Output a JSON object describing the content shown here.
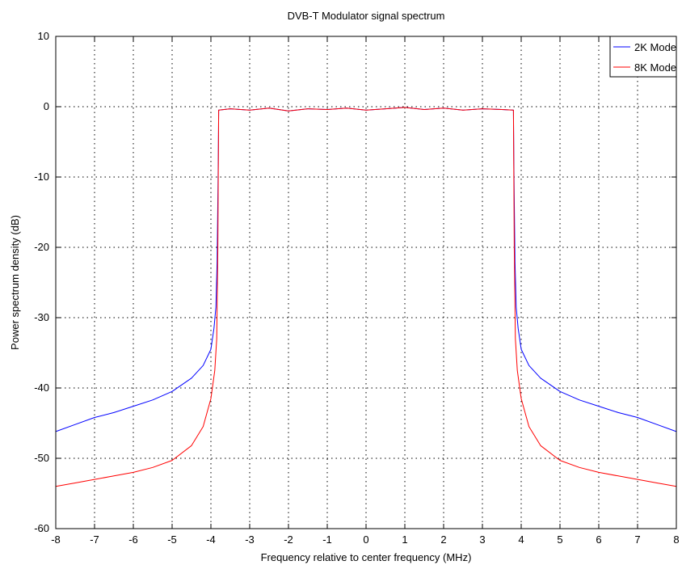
{
  "chart_data": {
    "type": "line",
    "title": "DVB-T Modulator signal spectrum",
    "xlabel": "Frequency relative to center frequency (MHz)",
    "ylabel": "Power spectrum density (dB)",
    "xlim": [
      -8,
      8
    ],
    "ylim": [
      -60,
      10
    ],
    "xticks": [
      -8,
      -7,
      -6,
      -5,
      -4,
      -3,
      -2,
      -1,
      0,
      1,
      2,
      3,
      4,
      5,
      6,
      7,
      8
    ],
    "yticks": [
      -60,
      -50,
      -40,
      -30,
      -20,
      -10,
      0,
      10
    ],
    "grid": true,
    "legend_position": "top-right",
    "series": [
      {
        "name": "2K Mode",
        "color": "#0000ff",
        "x": [
          -8,
          -7.5,
          -7,
          -6.5,
          -6,
          -5.5,
          -5,
          -4.5,
          -4.2,
          -4.0,
          -3.92,
          -3.87,
          -3.84,
          -3.81,
          -3.8,
          -3.5,
          -3,
          -2.5,
          -2,
          -1.5,
          -1,
          -0.5,
          0,
          0.5,
          1,
          1.5,
          2,
          2.5,
          3,
          3.5,
          3.8,
          3.81,
          3.84,
          3.87,
          3.92,
          4.0,
          4.2,
          4.5,
          5,
          5.5,
          6,
          6.5,
          7,
          7.5,
          8
        ],
        "y": [
          -46.2,
          -45.2,
          -44.2,
          -43.5,
          -42.6,
          -41.7,
          -40.5,
          -38.6,
          -36.8,
          -34.5,
          -31.5,
          -28.5,
          -22,
          -8,
          -0.5,
          -0.3,
          -0.5,
          -0.2,
          -0.6,
          -0.3,
          -0.4,
          -0.2,
          -0.5,
          -0.3,
          -0.1,
          -0.4,
          -0.2,
          -0.5,
          -0.3,
          -0.4,
          -0.5,
          -8,
          -22,
          -28.5,
          -31.5,
          -34.5,
          -36.8,
          -38.6,
          -40.5,
          -41.7,
          -42.6,
          -43.5,
          -44.2,
          -45.2,
          -46.2
        ]
      },
      {
        "name": "8K Mode",
        "color": "#ff0000",
        "x": [
          -8,
          -7.5,
          -7,
          -6.5,
          -6,
          -5.5,
          -5,
          -4.5,
          -4.2,
          -4.0,
          -3.9,
          -3.85,
          -3.82,
          -3.8,
          -3.5,
          -3,
          -2.5,
          -2,
          -1.5,
          -1,
          -0.5,
          0,
          0.5,
          1,
          1.5,
          2,
          2.5,
          3,
          3.5,
          3.8,
          3.82,
          3.85,
          3.9,
          4.0,
          4.2,
          4.5,
          5,
          5.5,
          6,
          6.5,
          7,
          7.5,
          8
        ],
        "y": [
          -54,
          -53.5,
          -53,
          -52.5,
          -52,
          -51.3,
          -50.3,
          -48.2,
          -45.5,
          -41.5,
          -37.5,
          -33,
          -20,
          -0.5,
          -0.3,
          -0.5,
          -0.2,
          -0.6,
          -0.3,
          -0.4,
          -0.2,
          -0.5,
          -0.3,
          -0.1,
          -0.4,
          -0.2,
          -0.5,
          -0.3,
          -0.4,
          -0.5,
          -20,
          -33,
          -37.5,
          -41.5,
          -45.5,
          -48.2,
          -50.3,
          -51.3,
          -52,
          -52.5,
          -53,
          -53.5,
          -54
        ]
      }
    ]
  }
}
